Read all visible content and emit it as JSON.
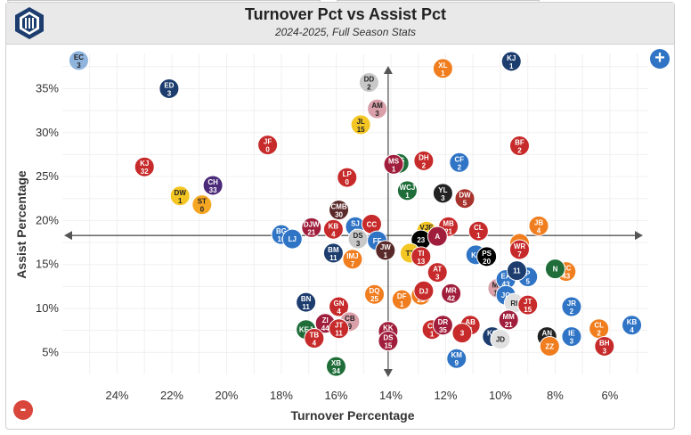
{
  "header": {
    "title": "Turnover Pct vs Assist Pct",
    "subtitle": "2024-2025, Full Season Stats"
  },
  "controls": {
    "zoom_in": "+",
    "zoom_out": "-"
  },
  "chart_data": {
    "type": "scatter",
    "title": "Turnover Pct vs Assist Pct",
    "subtitle": "2024-2025, Full Season Stats",
    "xlabel": "Turnover Percentage",
    "ylabel": "Assist Percentage",
    "x_reversed": true,
    "xlim": [
      26,
      4.6
    ],
    "ylim": [
      2.5,
      39
    ],
    "x_ticks": [
      24,
      22,
      20,
      18,
      16,
      14,
      12,
      10,
      8,
      6
    ],
    "x_tick_labels": [
      "24%",
      "22%",
      "20%",
      "18%",
      "16%",
      "14%",
      "12%",
      "10%",
      "8%",
      "6%"
    ],
    "y_ticks": [
      5,
      10,
      15,
      20,
      25,
      30,
      35
    ],
    "y_tick_labels": [
      "5%",
      "10%",
      "15%",
      "20%",
      "25%",
      "30%",
      "35%"
    ],
    "grid": true,
    "crosshair": {
      "x": 14.1,
      "y": 18.3
    },
    "points": [
      {
        "i": "EC",
        "n": "3",
        "x": 25.4,
        "y": 38.2,
        "c": "#8fb4de"
      },
      {
        "i": "ED",
        "n": "3",
        "x": 22.1,
        "y": 35.0,
        "c": "#1c3d6e"
      },
      {
        "i": "KJ",
        "n": "32",
        "x": 23.0,
        "y": 26.1,
        "c": "#c72a2a"
      },
      {
        "i": "DW",
        "n": "1",
        "x": 21.7,
        "y": 22.8,
        "c": "#f3c623"
      },
      {
        "i": "ST",
        "n": "0",
        "x": 20.9,
        "y": 21.8,
        "c": "#f5a623"
      },
      {
        "i": "CH",
        "n": "33",
        "x": 20.5,
        "y": 24.0,
        "c": "#4b2a7a"
      },
      {
        "i": "JF",
        "n": "0",
        "x": 18.5,
        "y": 28.6,
        "c": "#c72a2a"
      },
      {
        "i": "DD",
        "n": "2",
        "x": 14.8,
        "y": 35.7,
        "c": "#c8c8c8"
      },
      {
        "i": "AM",
        "n": "3",
        "x": 14.5,
        "y": 32.7,
        "c": "#d9a0aa"
      },
      {
        "i": "JL",
        "n": "15",
        "x": 15.1,
        "y": 30.9,
        "c": "#f3c623"
      },
      {
        "i": "XL",
        "n": "1",
        "x": 12.1,
        "y": 37.3,
        "c": "#f07d1e"
      },
      {
        "i": "KJ",
        "n": "1",
        "x": 9.6,
        "y": 38.1,
        "c": "#1c3d6e"
      },
      {
        "i": "BF",
        "n": "2",
        "x": 9.3,
        "y": 28.5,
        "c": "#c72a2a"
      },
      {
        "i": "LP",
        "n": "0",
        "x": 15.6,
        "y": 24.9,
        "c": "#c72a2a"
      },
      {
        "i": "MS",
        "n": "1",
        "x": 13.7,
        "y": 26.5,
        "c": "#1f6e3a"
      },
      {
        "i": "MS",
        "n": "1",
        "x": 13.9,
        "y": 26.4,
        "c": "#a01e3c"
      },
      {
        "i": "DH",
        "n": "2",
        "x": 12.8,
        "y": 26.8,
        "c": "#c72a2a"
      },
      {
        "i": "CF",
        "n": "2",
        "x": 11.5,
        "y": 26.6,
        "c": "#2f74c5"
      },
      {
        "i": "WCJ",
        "n": "1",
        "x": 13.4,
        "y": 23.4,
        "c": "#1f6e3a"
      },
      {
        "i": "YL",
        "n": "3",
        "x": 12.1,
        "y": 23.1,
        "c": "#222222"
      },
      {
        "i": "DW",
        "n": "5",
        "x": 11.3,
        "y": 22.5,
        "c": "#a8322c"
      },
      {
        "i": "CMB",
        "n": "30",
        "x": 15.9,
        "y": 21.2,
        "c": "#5a2a2a"
      },
      {
        "i": "DJW",
        "n": "21",
        "x": 16.9,
        "y": 19.2,
        "c": "#a01e3c"
      },
      {
        "i": "KB",
        "n": "4",
        "x": 16.1,
        "y": 19.0,
        "c": "#c72a2a"
      },
      {
        "i": "SJ",
        "n": "1",
        "x": 15.3,
        "y": 19.3,
        "c": "#2f74c5"
      },
      {
        "i": "CC",
        "n": "",
        "x": 14.7,
        "y": 19.6,
        "c": "#c72a2a"
      },
      {
        "i": "DS",
        "n": "3",
        "x": 15.2,
        "y": 17.9,
        "c": "#c8c8c8"
      },
      {
        "i": "FF",
        "n": "",
        "x": 14.5,
        "y": 17.7,
        "c": "#2f74c5"
      },
      {
        "i": "BG",
        "n": "10",
        "x": 18.0,
        "y": 18.4,
        "c": "#2f74c5"
      },
      {
        "i": "LJ",
        "n": "",
        "x": 17.6,
        "y": 17.9,
        "c": "#2f74c5"
      },
      {
        "i": "BM",
        "n": "11",
        "x": 16.1,
        "y": 16.3,
        "c": "#1c3d6e"
      },
      {
        "i": "IMJ",
        "n": "7",
        "x": 15.4,
        "y": 15.6,
        "c": "#f07d1e"
      },
      {
        "i": "JW",
        "n": "1",
        "x": 14.2,
        "y": 16.6,
        "c": "#5a2a2a"
      },
      {
        "i": "VJE",
        "n": "7",
        "x": 12.7,
        "y": 18.8,
        "c": "#f3c623"
      },
      {
        "i": "23",
        "n": "",
        "x": 12.9,
        "y": 17.8,
        "c": "#000000"
      },
      {
        "i": "MB",
        "n": "21",
        "x": 11.9,
        "y": 19.3,
        "c": "#c72a2a"
      },
      {
        "i": "A",
        "n": "",
        "x": 12.3,
        "y": 18.2,
        "c": "#a01e3c"
      },
      {
        "i": "CL",
        "n": "1",
        "x": 10.8,
        "y": 18.8,
        "c": "#c72a2a"
      },
      {
        "i": "TT",
        "n": "",
        "x": 13.3,
        "y": 16.3,
        "c": "#f3c623"
      },
      {
        "i": "TI",
        "n": "13",
        "x": 12.9,
        "y": 15.9,
        "c": "#c72a2a"
      },
      {
        "i": "KJ",
        "n": "",
        "x": 10.9,
        "y": 16.1,
        "c": "#2f74c5"
      },
      {
        "i": "PS",
        "n": "20",
        "x": 10.5,
        "y": 15.9,
        "c": "#000000"
      },
      {
        "i": "JB",
        "n": "4",
        "x": 8.6,
        "y": 19.4,
        "c": "#f07d1e"
      },
      {
        "i": "TJ",
        "n": "",
        "x": 9.3,
        "y": 17.4,
        "c": "#f07d1e"
      },
      {
        "i": "WR",
        "n": "7",
        "x": 9.3,
        "y": 16.7,
        "c": "#c72a2a"
      },
      {
        "i": "AT",
        "n": "3",
        "x": 12.3,
        "y": 14.1,
        "c": "#c72a2a"
      },
      {
        "i": "DQ",
        "n": "25",
        "x": 14.6,
        "y": 11.6,
        "c": "#f07d1e"
      },
      {
        "i": "DF",
        "n": "1",
        "x": 13.6,
        "y": 11.0,
        "c": "#f07d1e"
      },
      {
        "i": "DM",
        "n": "23",
        "x": 12.9,
        "y": 11.5,
        "c": "#f07d1e"
      },
      {
        "i": "DJ",
        "n": "",
        "x": 12.8,
        "y": 12.0,
        "c": "#c72a2a"
      },
      {
        "i": "MR",
        "n": "42",
        "x": 11.8,
        "y": 11.7,
        "c": "#a01e3c"
      },
      {
        "i": "MK",
        "n": "14",
        "x": 10.1,
        "y": 12.3,
        "c": "#d9a0aa"
      },
      {
        "i": "EA",
        "n": "43",
        "x": 9.8,
        "y": 13.3,
        "c": "#2f74c5"
      },
      {
        "i": "P",
        "n": "5",
        "x": 9.0,
        "y": 13.6,
        "c": "#2f74c5"
      },
      {
        "i": "11",
        "n": "",
        "x": 9.4,
        "y": 14.3,
        "c": "#1c3d6e"
      },
      {
        "i": "CC",
        "n": "43",
        "x": 7.6,
        "y": 14.2,
        "c": "#f07d1e"
      },
      {
        "i": "N",
        "n": "",
        "x": 8.0,
        "y": 14.5,
        "c": "#1f6e3a"
      },
      {
        "i": "JO",
        "n": "",
        "x": 9.8,
        "y": 11.5,
        "c": "#2f74c5"
      },
      {
        "i": "RI",
        "n": "",
        "x": 9.5,
        "y": 10.6,
        "c": "#e0e0e0"
      },
      {
        "i": "JT",
        "n": "15",
        "x": 9.0,
        "y": 10.4,
        "c": "#c72a2a"
      },
      {
        "i": "JR",
        "n": "2",
        "x": 7.4,
        "y": 10.2,
        "c": "#2f74c5"
      },
      {
        "i": "BN",
        "n": "11",
        "x": 17.1,
        "y": 10.7,
        "c": "#1c3d6e"
      },
      {
        "i": "GN",
        "n": "4",
        "x": 15.9,
        "y": 10.2,
        "c": "#c72a2a"
      },
      {
        "i": "ZI",
        "n": "44",
        "x": 16.4,
        "y": 8.3,
        "c": "#a01e3c"
      },
      {
        "i": "CB",
        "n": "9",
        "x": 15.5,
        "y": 8.5,
        "c": "#d9a0aa"
      },
      {
        "i": "KEJ",
        "n": "",
        "x": 17.1,
        "y": 7.6,
        "c": "#1f6e3a"
      },
      {
        "i": "JT",
        "n": "11",
        "x": 15.9,
        "y": 7.7,
        "c": "#c72a2a"
      },
      {
        "i": "TB",
        "n": "4",
        "x": 16.8,
        "y": 6.6,
        "c": "#c72a2a"
      },
      {
        "i": "KK",
        "n": "11",
        "x": 14.1,
        "y": 7.4,
        "c": "#a01e3c"
      },
      {
        "i": "DS",
        "n": "15",
        "x": 14.1,
        "y": 6.3,
        "c": "#a01e3c"
      },
      {
        "i": "CJ",
        "n": "1",
        "x": 12.5,
        "y": 7.6,
        "c": "#c72a2a"
      },
      {
        "i": "DR",
        "n": "35",
        "x": 12.1,
        "y": 8.1,
        "c": "#a01e3c"
      },
      {
        "i": "AB",
        "n": "4",
        "x": 11.1,
        "y": 8.1,
        "c": "#c72a2a"
      },
      {
        "i": "3",
        "n": "",
        "x": 11.4,
        "y": 7.2,
        "c": "#c72a2a"
      },
      {
        "i": "KC",
        "n": "6",
        "x": 10.3,
        "y": 6.8,
        "c": "#1c3d6e"
      },
      {
        "i": "JD",
        "n": "",
        "x": 10.0,
        "y": 6.5,
        "c": "#e0e0e0"
      },
      {
        "i": "MM",
        "n": "21",
        "x": 9.7,
        "y": 8.7,
        "c": "#a01e3c"
      },
      {
        "i": "KM",
        "n": "9",
        "x": 11.6,
        "y": 4.3,
        "c": "#2f74c5"
      },
      {
        "i": "XB",
        "n": "34",
        "x": 16.0,
        "y": 3.4,
        "c": "#1f6e3a"
      },
      {
        "i": "AN",
        "n": "14",
        "x": 8.3,
        "y": 6.8,
        "c": "#222222"
      },
      {
        "i": "ZZ",
        "n": "",
        "x": 8.2,
        "y": 5.7,
        "c": "#f07d1e"
      },
      {
        "i": "IE",
        "n": "3",
        "x": 7.4,
        "y": 6.8,
        "c": "#2f74c5"
      },
      {
        "i": "CL",
        "n": "2",
        "x": 6.4,
        "y": 7.7,
        "c": "#f07d1e"
      },
      {
        "i": "BH",
        "n": "3",
        "x": 6.2,
        "y": 5.7,
        "c": "#c72a2a"
      },
      {
        "i": "KB",
        "n": "4",
        "x": 5.2,
        "y": 8.1,
        "c": "#2f74c5"
      }
    ]
  }
}
